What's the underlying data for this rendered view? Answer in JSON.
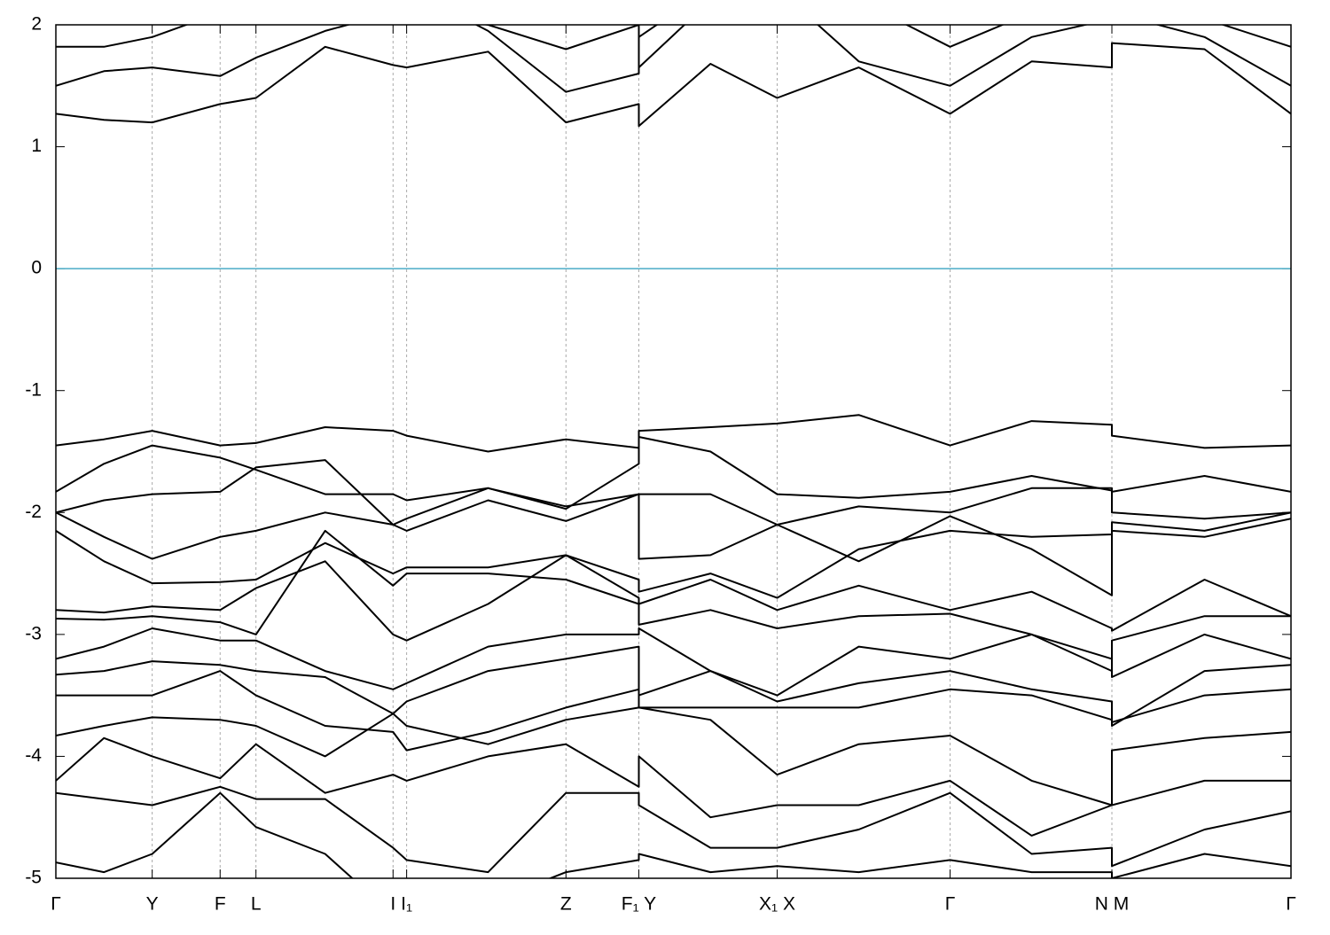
{
  "chart_data": {
    "type": "line",
    "color": "#000000",
    "zero_line": {
      "value": 0,
      "color": "#4bacc6"
    },
    "grid_x": true,
    "ylim": [
      -5,
      2
    ],
    "yticks": [
      2,
      1,
      0,
      -1,
      -2,
      -3,
      -4,
      -5
    ],
    "xlim": [
      0,
      1
    ],
    "xticks": [
      {
        "value": 0,
        "label": "Γ"
      },
      {
        "value": 0.078,
        "label": "Y"
      },
      {
        "value": 0.133,
        "label": "F"
      },
      {
        "value": 0.162,
        "label": "L"
      },
      {
        "value": 0.273,
        "label": "I"
      },
      {
        "value": 0.284,
        "label": "I₁"
      },
      {
        "value": 0.413,
        "label": "Z"
      },
      {
        "value": 0.472,
        "label": "F₁ Y"
      },
      {
        "value": 0.584,
        "label": "X₁ X"
      },
      {
        "value": 0.724,
        "label": "Γ"
      },
      {
        "value": 0.855,
        "label": "N M"
      },
      {
        "value": 1,
        "label": "Γ"
      }
    ],
    "x": [
      0,
      0.039,
      0.078,
      0.133,
      0.162,
      0.218,
      0.273,
      0.284,
      0.35,
      0.413,
      0.472,
      0.472,
      0.53,
      0.584,
      0.65,
      0.724,
      0.79,
      0.855,
      0.855,
      0.93,
      1
    ],
    "series": [
      {
        "values": [
          1.27,
          1.22,
          1.2,
          1.35,
          1.4,
          1.82,
          1.67,
          1.65,
          1.78,
          1.2,
          1.35,
          1.17,
          1.68,
          1.4,
          1.65,
          1.27,
          1.7,
          1.65,
          1.85,
          1.8,
          1.27
        ]
      },
      {
        "values": [
          1.5,
          1.62,
          1.65,
          1.58,
          1.73,
          1.95,
          2.1,
          2.1,
          2.0,
          1.8,
          2.0,
          1.65,
          2.2,
          2.3,
          1.7,
          1.5,
          1.9,
          2.05,
          2.1,
          1.9,
          1.5
        ]
      },
      {
        "values": [
          1.82,
          1.82,
          1.9,
          2.1,
          2.3,
          2.4,
          2.3,
          2.3,
          1.95,
          1.45,
          1.6,
          1.9,
          2.3,
          2.4,
          2.2,
          1.82,
          2.1,
          2.2,
          2.2,
          2.05,
          1.82
        ]
      },
      {
        "values": [
          -1.45,
          -1.4,
          -1.33,
          -1.45,
          -1.43,
          -1.3,
          -1.33,
          -1.37,
          -1.5,
          -1.4,
          -1.47,
          -1.33,
          -1.3,
          -1.27,
          -1.2,
          -1.45,
          -1.25,
          -1.28,
          -1.37,
          -1.47,
          -1.45
        ]
      },
      {
        "values": [
          -1.83,
          -1.6,
          -1.45,
          -1.55,
          -1.65,
          -1.85,
          -1.85,
          -1.9,
          -1.8,
          -1.97,
          -1.6,
          -1.38,
          -1.5,
          -1.85,
          -1.88,
          -1.83,
          -1.7,
          -1.82,
          -1.83,
          -1.7,
          -1.83
        ]
      },
      {
        "values": [
          -2.0,
          -1.9,
          -1.85,
          -1.83,
          -1.63,
          -1.57,
          -2.1,
          -2.05,
          -1.8,
          -1.95,
          -1.85,
          -1.85,
          -1.85,
          -2.1,
          -1.95,
          -2.0,
          -1.8,
          -1.8,
          -2.0,
          -2.05,
          -2.0
        ]
      },
      {
        "values": [
          -2.0,
          -2.2,
          -2.38,
          -2.2,
          -2.15,
          -2.0,
          -2.1,
          -2.15,
          -1.9,
          -2.07,
          -1.85,
          -2.38,
          -2.35,
          -2.1,
          -2.4,
          -2.03,
          -2.3,
          -2.68,
          -2.08,
          -2.15,
          -2.0
        ]
      },
      {
        "values": [
          -2.15,
          -2.4,
          -2.58,
          -2.57,
          -2.55,
          -2.25,
          -2.5,
          -2.45,
          -2.45,
          -2.35,
          -2.55,
          -2.65,
          -2.5,
          -2.7,
          -2.3,
          -2.15,
          -2.2,
          -2.18,
          -2.15,
          -2.2,
          -2.05
        ]
      },
      {
        "values": [
          -2.8,
          -2.82,
          -2.77,
          -2.8,
          -2.62,
          -2.4,
          -3.0,
          -3.05,
          -2.75,
          -2.35,
          -2.7,
          -2.75,
          -2.55,
          -2.8,
          -2.6,
          -2.8,
          -2.65,
          -2.95,
          -2.97,
          -2.55,
          -2.85
        ]
      },
      {
        "values": [
          -2.87,
          -2.88,
          -2.85,
          -2.9,
          -3.0,
          -2.15,
          -2.6,
          -2.5,
          -2.5,
          -2.55,
          -2.75,
          -2.92,
          -2.8,
          -2.95,
          -2.85,
          -2.83,
          -3.0,
          -3.3,
          -3.05,
          -2.85,
          -2.85
        ]
      },
      {
        "values": [
          -3.2,
          -3.1,
          -2.95,
          -3.05,
          -3.05,
          -3.3,
          -3.45,
          -3.4,
          -3.1,
          -3.0,
          -3.0,
          -2.95,
          -3.3,
          -3.5,
          -3.1,
          -3.2,
          -3.0,
          -3.2,
          -3.35,
          -3.0,
          -3.2
        ]
      },
      {
        "values": [
          -3.33,
          -3.3,
          -3.22,
          -3.25,
          -3.3,
          -3.35,
          -3.65,
          -3.55,
          -3.3,
          -3.2,
          -3.1,
          -3.5,
          -3.3,
          -3.55,
          -3.4,
          -3.3,
          -3.45,
          -3.55,
          -3.75,
          -3.3,
          -3.25
        ]
      },
      {
        "values": [
          -3.5,
          -3.5,
          -3.5,
          -3.3,
          -3.5,
          -3.75,
          -3.8,
          -3.95,
          -3.8,
          -3.6,
          -3.45,
          -3.6,
          -3.6,
          -3.6,
          -3.6,
          -3.45,
          -3.5,
          -3.7,
          -3.72,
          -3.5,
          -3.45
        ]
      },
      {
        "values": [
          -3.83,
          -3.75,
          -3.68,
          -3.7,
          -3.75,
          -4.0,
          -3.65,
          -3.75,
          -3.9,
          -3.7,
          -3.6,
          -3.6,
          -3.7,
          -4.15,
          -3.9,
          -3.83,
          -4.2,
          -4.4,
          -3.95,
          -3.85,
          -3.8
        ]
      },
      {
        "values": [
          -4.2,
          -3.85,
          -4.0,
          -4.18,
          -3.9,
          -4.3,
          -4.15,
          -4.2,
          -4.0,
          -3.9,
          -4.25,
          -4.0,
          -4.5,
          -4.4,
          -4.4,
          -4.2,
          -4.65,
          -4.4,
          -4.4,
          -4.2,
          -4.2
        ]
      },
      {
        "values": [
          -4.3,
          -4.35,
          -4.4,
          -4.25,
          -4.35,
          -4.35,
          -4.75,
          -4.85,
          -4.95,
          -4.3,
          -4.3,
          -4.4,
          -4.75,
          -4.75,
          -4.6,
          -4.3,
          -4.8,
          -4.75,
          -4.9,
          -4.6,
          -4.45
        ]
      },
      {
        "values": [
          -4.87,
          -4.95,
          -4.8,
          -4.3,
          -4.58,
          -4.8,
          -5.3,
          -5.3,
          -5.2,
          -4.95,
          -4.85,
          -4.8,
          -4.95,
          -4.9,
          -4.95,
          -4.85,
          -4.95,
          -4.95,
          -5.0,
          -4.8,
          -4.9
        ]
      }
    ]
  }
}
